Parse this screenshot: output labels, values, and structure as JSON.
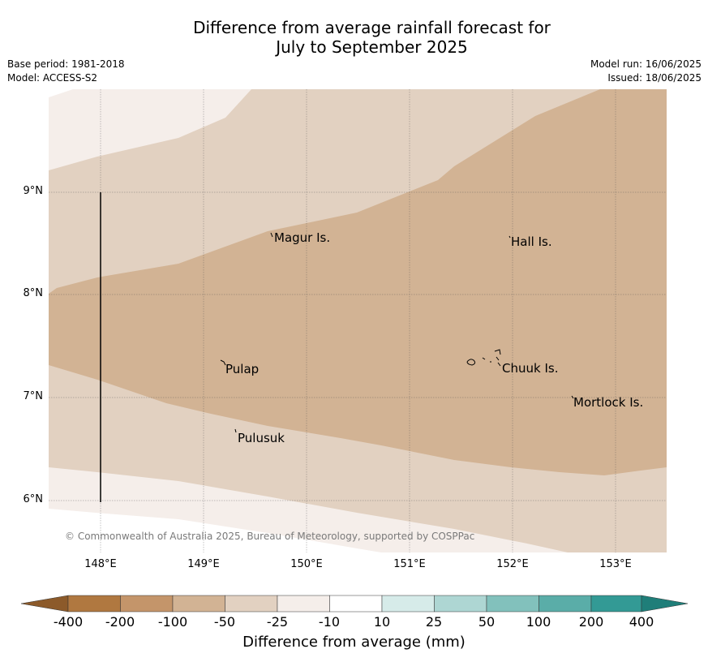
{
  "title_line1": "Difference from average rainfall forecast for",
  "title_line2": "July to September 2025",
  "base_period": "Base period: 1981-2018",
  "model": "Model: ACCESS-S2",
  "model_run": "Model run: 16/06/2025",
  "issued": "Issued: 18/06/2025",
  "lat_labels": [
    "9°N",
    "8°N",
    "7°N",
    "6°N"
  ],
  "lon_labels": [
    "148°E",
    "149°E",
    "150°E",
    "151°E",
    "152°E",
    "153°E"
  ],
  "places": {
    "magur": "Magur Is.",
    "hall": "Hall Is.",
    "pulap": "Pulap",
    "chuuk": "Chuuk Is.",
    "mortlock": "Mortlock Is.",
    "pulusuk": "Pulusuk"
  },
  "copyright": "© Commonwealth of Australia 2025, Bureau of Meteorology, supported by COSPPac",
  "legend": {
    "title": "Difference from average (mm)",
    "ticks": [
      "-400",
      "-200",
      "-100",
      "-50",
      "-25",
      "-10",
      "10",
      "25",
      "50",
      "100",
      "200",
      "400"
    ],
    "colors": [
      "#8c5a2a",
      "#b07840",
      "#c4956a",
      "#d2b394",
      "#e2d1c1",
      "#f5eeea",
      "#ffffff",
      "#d6ebe9",
      "#aed6d3",
      "#82c1bc",
      "#5aada8",
      "#339a95",
      "#1f7e79"
    ]
  },
  "map_colors": {
    "band_minus25": "#f5eeea",
    "band_minus50": "#e2d1c1",
    "band_minus100": "#d2b394"
  }
}
